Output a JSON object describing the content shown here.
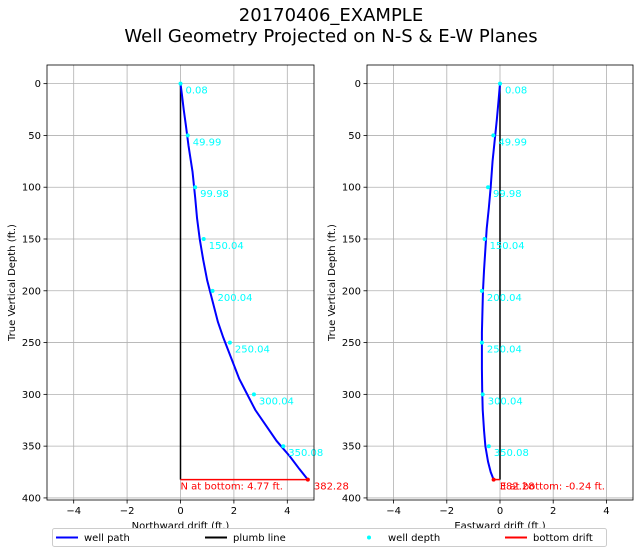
{
  "chart_data": {
    "type": "line",
    "title_line1": "20170406_EXAMPLE",
    "title_line2": "Well Geometry Projected on N-S & E-W Planes",
    "colors": {
      "well_path": "#0000ff",
      "plumb_line": "#000000",
      "well_depth": "#00ffff",
      "bottom_drift": "#ff0000",
      "grid": "#b0b0b0"
    },
    "legend": [
      {
        "key": "well_path",
        "label": "well path",
        "style": "line"
      },
      {
        "key": "plumb_line",
        "label": "plumb line",
        "style": "line"
      },
      {
        "key": "well_depth",
        "label": "well depth",
        "style": "marker"
      },
      {
        "key": "bottom_drift",
        "label": "bottom drift",
        "style": "line"
      }
    ],
    "subplots": [
      {
        "xlabel": "Northward drift (ft.)",
        "ylabel": "True Vertical Depth (ft.)",
        "xlim": [
          -5,
          5
        ],
        "ylim": [
          402,
          -18
        ],
        "xticks": [
          -4,
          -2,
          0,
          2,
          4
        ],
        "yticks": [
          0,
          50,
          100,
          150,
          200,
          250,
          300,
          350,
          400
        ],
        "path": {
          "x": [
            0,
            0.05,
            0.12,
            0.2,
            0.3,
            0.45,
            0.55,
            0.62,
            0.72,
            0.85,
            1.0,
            1.2,
            1.4,
            1.6,
            1.9,
            2.2,
            2.5,
            2.8,
            3.2,
            3.6,
            4.1,
            4.45,
            4.77
          ],
          "y": [
            0,
            10,
            25,
            40,
            60,
            85,
            110,
            130,
            150,
            170,
            190,
            210,
            230,
            245,
            265,
            285,
            300,
            315,
            330,
            345,
            360,
            372,
            382.28
          ]
        },
        "markers": [
          {
            "x": 0,
            "y": 0,
            "label": "0.08"
          },
          {
            "x": 0.27,
            "y": 49.99,
            "label": "49.99"
          },
          {
            "x": 0.55,
            "y": 99.98,
            "label": "99.98"
          },
          {
            "x": 0.87,
            "y": 150.04,
            "label": "150.04"
          },
          {
            "x": 1.2,
            "y": 200.04,
            "label": "200.04"
          },
          {
            "x": 1.85,
            "y": 250.04,
            "label": "250.04"
          },
          {
            "x": 2.75,
            "y": 300.04,
            "label": "300.04"
          },
          {
            "x": 3.85,
            "y": 350.08,
            "label": "350.08"
          }
        ],
        "plumb": {
          "x": 0,
          "y0": 0,
          "y1": 382.28
        },
        "bottom": {
          "x0": 0,
          "x1": 4.77,
          "y": 382.28,
          "text": "N at bottom: 4.77 ft.",
          "end_label": "382.28"
        }
      },
      {
        "xlabel": "Eastward drift (ft.)",
        "ylabel": "True Vertical Depth (ft.)",
        "xlim": [
          -5,
          5
        ],
        "ylim": [
          402,
          -18
        ],
        "xticks": [
          -4,
          -2,
          0,
          2,
          4
        ],
        "yticks": [
          0,
          50,
          100,
          150,
          200,
          250,
          300,
          350,
          400
        ],
        "path": {
          "x": [
            0,
            -0.05,
            -0.12,
            -0.2,
            -0.28,
            -0.35,
            -0.42,
            -0.5,
            -0.55,
            -0.6,
            -0.64,
            -0.66,
            -0.68,
            -0.68,
            -0.68,
            -0.67,
            -0.65,
            -0.6,
            -0.55,
            -0.45,
            -0.35,
            -0.24
          ],
          "y": [
            0,
            15,
            35,
            55,
            75,
            100,
            120,
            140,
            160,
            180,
            200,
            220,
            240,
            255,
            275,
            295,
            315,
            335,
            350,
            365,
            375,
            382.28
          ]
        },
        "markers": [
          {
            "x": 0,
            "y": 0,
            "label": "0.08"
          },
          {
            "x": -0.25,
            "y": 49.99,
            "label": "49.99"
          },
          {
            "x": -0.45,
            "y": 99.98,
            "label": "99.98"
          },
          {
            "x": -0.58,
            "y": 150.04,
            "label": "150.04"
          },
          {
            "x": -0.68,
            "y": 200.04,
            "label": "200.04"
          },
          {
            "x": -0.68,
            "y": 250.04,
            "label": "250.04"
          },
          {
            "x": -0.65,
            "y": 300.04,
            "label": "300.04"
          },
          {
            "x": -0.42,
            "y": 350.08,
            "label": "350.08"
          }
        ],
        "plumb": {
          "x": 0,
          "y0": 0,
          "y1": 382.28
        },
        "bottom": {
          "x0": 0,
          "x1": -0.24,
          "y": 382.28,
          "text": "E at bottom: -0.24 ft.",
          "end_label": "382.28"
        }
      }
    ]
  }
}
